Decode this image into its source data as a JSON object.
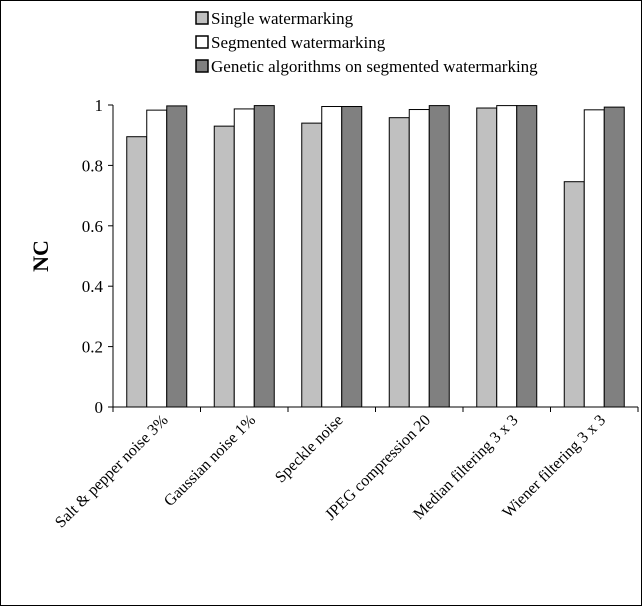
{
  "chart_data": {
    "type": "bar",
    "categories": [
      "Salt & pepper noise 3%",
      "Gaussian noise 1%",
      "Speckle noise",
      "JPEG compression 20",
      "Median filtering 3 x 3",
      "Wiener filtering 3 x 3"
    ],
    "series": [
      {
        "name": "Single watermarking",
        "color": "#c0c0c0",
        "values": [
          0.895,
          0.93,
          0.94,
          0.958,
          0.99,
          0.746
        ]
      },
      {
        "name": "Segmented watermarking",
        "color": "#ffffff",
        "values": [
          0.983,
          0.987,
          0.995,
          0.985,
          0.998,
          0.984
        ]
      },
      {
        "name": "Genetic algorithms on segmented watermarking",
        "color": "#808080",
        "values": [
          0.997,
          0.998,
          0.995,
          0.998,
          0.998,
          0.993
        ]
      }
    ],
    "ylabel": "NC",
    "xlabel": "",
    "ylim": [
      0,
      1
    ],
    "yticks": [
      "0",
      "0.2",
      "0.4",
      "0.6",
      "0.8",
      "1"
    ],
    "grid": false,
    "legend_position": "top"
  }
}
